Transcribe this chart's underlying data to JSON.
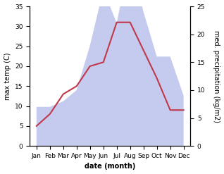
{
  "months": [
    "Jan",
    "Feb",
    "Mar",
    "Apr",
    "May",
    "Jun",
    "Jul",
    "Aug",
    "Sep",
    "Oct",
    "Nov",
    "Dec"
  ],
  "temperature": [
    5,
    8,
    13,
    15,
    20,
    21,
    31,
    31,
    24,
    17,
    9,
    9
  ],
  "precipitation": [
    7,
    7,
    8,
    10,
    18,
    28,
    22,
    34,
    24,
    16,
    16,
    9
  ],
  "temp_color": "#c0384b",
  "precip_fill_color": "#c5cbee",
  "temp_ylim": [
    0,
    35
  ],
  "precip_ylim": [
    0,
    25
  ],
  "temp_yticks": [
    0,
    5,
    10,
    15,
    20,
    25,
    30,
    35
  ],
  "precip_yticks": [
    0,
    5,
    10,
    15,
    20,
    25
  ],
  "xlabel": "date (month)",
  "ylabel_left": "max temp (C)",
  "ylabel_right": "med. precipitation (kg/m2)",
  "label_fontsize": 7,
  "tick_fontsize": 6.5
}
